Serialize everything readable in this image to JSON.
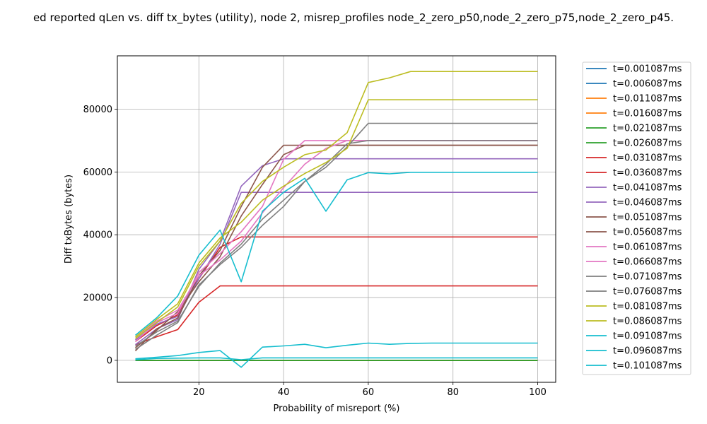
{
  "chart_data": {
    "type": "line",
    "title": "ed reported qLen vs. diff tx_bytes (utility), node 2, misrep_profiles node_2_zero_p50,node_2_zero_p75,node_2_zero_p45.",
    "xlabel": "Probability of misreport (%)",
    "ylabel": "Diff txBytes (bytes)",
    "xlim": [
      0.75,
      104.25
    ],
    "ylim": [
      -7000,
      97000
    ],
    "x_ticks": [
      20,
      40,
      60,
      80,
      100
    ],
    "y_ticks": [
      0,
      20000,
      40000,
      60000,
      80000
    ],
    "x_tick_labels": [
      "20",
      "40",
      "60",
      "80",
      "100"
    ],
    "y_tick_labels": [
      "0",
      "20000",
      "40000",
      "60000",
      "80000"
    ],
    "grid": true,
    "legend_placement": "outside-right",
    "x": [
      5,
      10,
      15,
      20,
      25,
      30,
      35,
      40,
      45,
      50,
      55,
      60,
      65,
      70,
      75,
      80,
      85,
      90,
      95,
      100
    ],
    "series": [
      {
        "name": "t=0.001087ms",
        "color": "#1f77b4",
        "values": [
          0,
          0,
          0,
          0,
          0,
          0,
          0,
          0,
          0,
          0,
          0,
          0,
          0,
          0,
          0,
          0,
          0,
          0,
          0,
          0
        ]
      },
      {
        "name": "t=0.006087ms",
        "color": "#1f77b4",
        "values": [
          0,
          0,
          0,
          0,
          0,
          0,
          0,
          0,
          0,
          0,
          0,
          0,
          0,
          0,
          0,
          0,
          0,
          0,
          0,
          0
        ]
      },
      {
        "name": "t=0.011087ms",
        "color": "#ff7f0e",
        "values": [
          0,
          0,
          0,
          0,
          0,
          0,
          0,
          0,
          0,
          0,
          0,
          0,
          0,
          0,
          0,
          0,
          0,
          0,
          0,
          0
        ]
      },
      {
        "name": "t=0.016087ms",
        "color": "#ff7f0e",
        "values": [
          0,
          0,
          0,
          0,
          0,
          0,
          0,
          0,
          0,
          0,
          0,
          0,
          0,
          0,
          0,
          0,
          0,
          0,
          0,
          0
        ]
      },
      {
        "name": "t=0.021087ms",
        "color": "#2ca02c",
        "values": [
          0,
          0,
          0,
          0,
          0,
          0,
          0,
          0,
          0,
          0,
          0,
          0,
          0,
          0,
          0,
          0,
          0,
          0,
          0,
          0
        ]
      },
      {
        "name": "t=0.026087ms",
        "color": "#2ca02c",
        "values": [
          0,
          0,
          0,
          0,
          0,
          0,
          0,
          0,
          0,
          0,
          0,
          0,
          0,
          0,
          0,
          0,
          0,
          0,
          0,
          0
        ]
      },
      {
        "name": "t=0.031087ms",
        "color": "#d62728",
        "values": [
          5000,
          7500,
          9800,
          18500,
          23700,
          23700,
          23700,
          23700,
          23700,
          23700,
          23700,
          23700,
          23700,
          23700,
          23700,
          23700,
          23700,
          23700,
          23700,
          23700
        ]
      },
      {
        "name": "t=0.036087ms",
        "color": "#d62728",
        "values": [
          6000,
          11000,
          14500,
          26000,
          36000,
          39300,
          39300,
          39300,
          39300,
          39300,
          39300,
          39300,
          39300,
          39300,
          39300,
          39300,
          39300,
          39300,
          39300,
          39300
        ]
      },
      {
        "name": "t=0.041087ms",
        "color": "#9467bd",
        "values": [
          6500,
          11500,
          14000,
          26000,
          37000,
          53500,
          53500,
          53500,
          53500,
          53500,
          53500,
          53500,
          53500,
          53500,
          53500,
          53500,
          53500,
          53500,
          53500,
          53500
        ]
      },
      {
        "name": "t=0.046087ms",
        "color": "#9467bd",
        "values": [
          5000,
          10000,
          13000,
          29000,
          38000,
          55500,
          62000,
          64200,
          64200,
          64200,
          64200,
          64200,
          64200,
          64200,
          64200,
          64200,
          64200,
          64200,
          64200,
          64200
        ]
      },
      {
        "name": "t=0.051087ms",
        "color": "#8c564b",
        "values": [
          3000,
          10000,
          13500,
          27000,
          35000,
          49000,
          61500,
          68500,
          68500,
          68500,
          68500,
          68500,
          68500,
          68500,
          68500,
          68500,
          68500,
          68500,
          68500,
          68500
        ]
      },
      {
        "name": "t=0.056087ms",
        "color": "#8c564b",
        "values": [
          4000,
          9500,
          15500,
          25000,
          33000,
          46000,
          56000,
          65500,
          68500,
          68500,
          68500,
          68500,
          68500,
          68500,
          68500,
          68500,
          68500,
          68500,
          68500,
          68500
        ]
      },
      {
        "name": "t=0.061087ms",
        "color": "#e377c2",
        "values": [
          6000,
          12000,
          15000,
          28000,
          34000,
          41000,
          49000,
          64000,
          70000,
          70000,
          70000,
          70000,
          70000,
          70000,
          70000,
          70000,
          70000,
          70000,
          70000,
          70000
        ]
      },
      {
        "name": "t=0.066087ms",
        "color": "#e377c2",
        "values": [
          7000,
          12500,
          16000,
          27000,
          32000,
          38000,
          47000,
          55000,
          62500,
          67500,
          70000,
          70000,
          70000,
          70000,
          70000,
          70000,
          70000,
          70000,
          70000,
          70000
        ]
      },
      {
        "name": "t=0.071087ms",
        "color": "#7f7f7f",
        "values": [
          3500,
          8000,
          12000,
          24000,
          30500,
          36000,
          43000,
          49000,
          57000,
          61500,
          68000,
          75500,
          75500,
          75500,
          75500,
          75500,
          75500,
          75500,
          75500,
          75500
        ]
      },
      {
        "name": "t=0.076087ms",
        "color": "#7f7f7f",
        "values": [
          4500,
          9000,
          12500,
          23500,
          31000,
          37000,
          45000,
          51000,
          57000,
          62500,
          69000,
          70000,
          70000,
          70000,
          70000,
          70000,
          70000,
          70000,
          70000,
          70000
        ]
      },
      {
        "name": "t=0.081087ms",
        "color": "#bcbd22",
        "values": [
          7000,
          12000,
          17000,
          30000,
          38000,
          50000,
          57000,
          61500,
          65500,
          67000,
          72500,
          88500,
          90000,
          92000,
          92000,
          92000,
          92000,
          92000,
          92000,
          92000
        ]
      },
      {
        "name": "t=0.086087ms",
        "color": "#bcbd22",
        "values": [
          7500,
          13000,
          18000,
          31000,
          39000,
          44000,
          51000,
          55500,
          59500,
          63000,
          67500,
          83000,
          83000,
          83000,
          83000,
          83000,
          83000,
          83000,
          83000,
          83000
        ]
      },
      {
        "name": "t=0.091087ms",
        "color": "#17becf",
        "values": [
          8000,
          13500,
          20500,
          33500,
          41500,
          25000,
          47500,
          53500,
          58000,
          47500,
          57500,
          59800,
          59400,
          59900,
          59900,
          59900,
          59900,
          59900,
          59900,
          59900
        ]
      },
      {
        "name": "t=0.096087ms",
        "color": "#17becf",
        "values": [
          500,
          1000,
          1500,
          2500,
          3100,
          -2200,
          4200,
          4600,
          5100,
          4000,
          4800,
          5500,
          5100,
          5400,
          5500,
          5500,
          5500,
          5500,
          5500,
          5500
        ]
      },
      {
        "name": "t=0.101087ms",
        "color": "#17becf",
        "values": [
          200,
          600,
          700,
          800,
          800,
          200,
          800,
          800,
          800,
          800,
          800,
          800,
          800,
          800,
          800,
          800,
          800,
          800,
          800,
          800
        ]
      }
    ]
  }
}
